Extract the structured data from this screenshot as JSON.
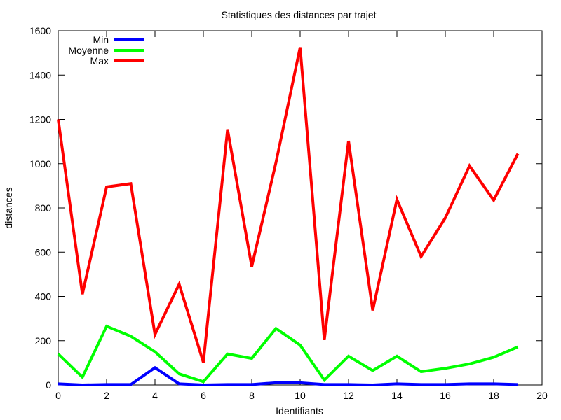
{
  "chart_data": {
    "type": "line",
    "title": "Statistiques des distances par trajet",
    "xlabel": "Identifiants",
    "ylabel": "distances",
    "xlim": [
      0,
      20
    ],
    "ylim": [
      0,
      1600
    ],
    "xticks": [
      0,
      2,
      4,
      6,
      8,
      10,
      12,
      14,
      16,
      18,
      20
    ],
    "yticks": [
      0,
      200,
      400,
      600,
      800,
      1000,
      1200,
      1400,
      1600
    ],
    "grid": false,
    "legend_position": "top-left",
    "x": [
      0,
      1,
      2,
      3,
      4,
      5,
      6,
      7,
      8,
      9,
      10,
      11,
      12,
      13,
      14,
      15,
      16,
      17,
      18,
      19
    ],
    "series": [
      {
        "name": "Min",
        "color": "#0000ff",
        "values": [
          5,
          0,
          2,
          2,
          78,
          5,
          0,
          2,
          2,
          10,
          10,
          2,
          2,
          0,
          5,
          2,
          2,
          5,
          5,
          2
        ]
      },
      {
        "name": "Moyenne",
        "color": "#00ff00",
        "values": [
          140,
          35,
          265,
          220,
          150,
          50,
          15,
          140,
          120,
          255,
          180,
          22,
          130,
          65,
          130,
          60,
          75,
          95,
          125,
          172
        ]
      },
      {
        "name": "Max",
        "color": "#ff0000",
        "values": [
          1200,
          410,
          895,
          910,
          228,
          455,
          102,
          1155,
          535,
          1005,
          1525,
          203,
          1103,
          337,
          838,
          580,
          755,
          990,
          835,
          1045
        ]
      }
    ]
  }
}
